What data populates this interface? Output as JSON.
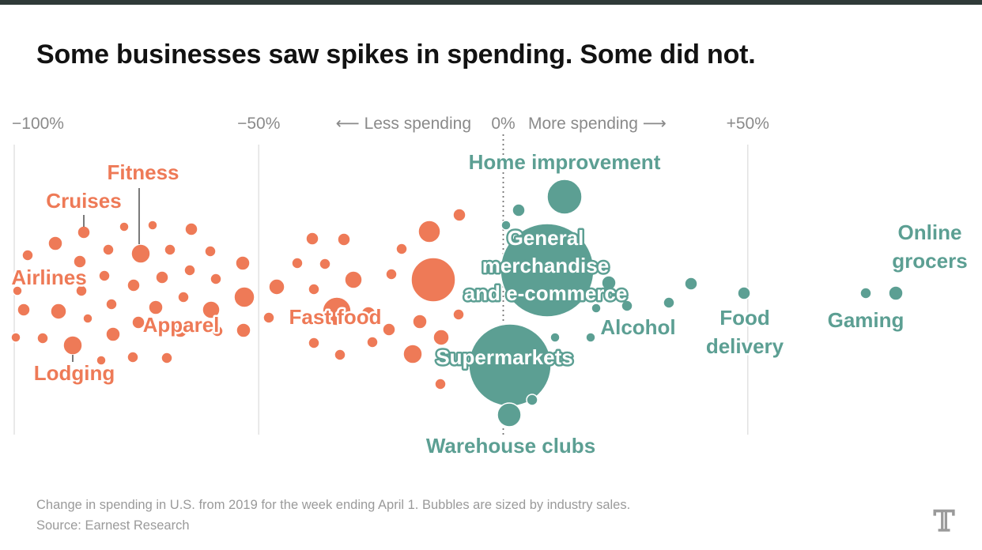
{
  "title": "Some businesses saw spikes in spending. Some did not.",
  "chart_data": {
    "type": "scatter",
    "encoding": "beeswarm bubble chart; x = change in spending vs 2019 (%), bubble area = industry sales",
    "axis": {
      "ticks": [
        {
          "value": -100,
          "label": "−100%"
        },
        {
          "value": -50,
          "label": "−50%"
        },
        {
          "value": 0,
          "label": "0%"
        },
        {
          "value": 50,
          "label": "+50%"
        }
      ],
      "less_label": "⟵ Less spending",
      "more_label": "More spending ⟶",
      "xlim": [
        -100,
        60
      ]
    },
    "colors": {
      "decrease": "#ee7a57",
      "increase": "#5c9f93"
    },
    "labeled_industries": [
      {
        "name": "Airlines",
        "change": -96
      },
      {
        "name": "Cruises",
        "change": -86
      },
      {
        "name": "Lodging",
        "change": -88
      },
      {
        "name": "Fitness",
        "change": -75
      },
      {
        "name": "Apparel",
        "change": -70
      },
      {
        "name": "Fast food",
        "change": -33
      },
      {
        "name": "Home improvement",
        "change": 13
      },
      {
        "name": "General merchandise and e-commerce",
        "change": 9
      },
      {
        "name": "Supermarkets",
        "change": 1
      },
      {
        "name": "Warehouse clubs",
        "change": 1
      },
      {
        "name": "Alcohol",
        "change": 19
      },
      {
        "name": "Food delivery",
        "change": 49
      },
      {
        "name": "Gaming",
        "change": 74
      },
      {
        "name": "Online grocers",
        "change": 80
      }
    ],
    "labels": [
      {
        "id": "airlines",
        "lines": [
          "Airlines"
        ],
        "group": "decrease"
      },
      {
        "id": "cruises",
        "lines": [
          "Cruises"
        ],
        "group": "decrease"
      },
      {
        "id": "fitness",
        "lines": [
          "Fitness"
        ],
        "group": "decrease"
      },
      {
        "id": "apparel",
        "lines": [
          "Apparel"
        ],
        "group": "decrease"
      },
      {
        "id": "lodging",
        "lines": [
          "Lodging"
        ],
        "group": "decrease"
      },
      {
        "id": "fastfood",
        "lines": [
          "Fast food"
        ],
        "group": "decrease"
      },
      {
        "id": "home",
        "lines": [
          "Home improvement"
        ],
        "group": "increase"
      },
      {
        "id": "general",
        "lines": [
          "General",
          "merchandise",
          "and e-commerce"
        ],
        "group": "increase"
      },
      {
        "id": "supermarkets",
        "lines": [
          "Supermarkets"
        ],
        "group": "increase"
      },
      {
        "id": "warehouse",
        "lines": [
          "Warehouse clubs"
        ],
        "group": "increase"
      },
      {
        "id": "alcohol",
        "lines": [
          "Alcohol"
        ],
        "group": "increase"
      },
      {
        "id": "fooddelivery",
        "lines": [
          "Food",
          "delivery"
        ],
        "group": "increase"
      },
      {
        "id": "gaming",
        "lines": [
          "Gaming"
        ],
        "group": "increase"
      },
      {
        "id": "online",
        "lines": [
          "Online",
          "grocers"
        ],
        "group": "increase"
      }
    ]
  },
  "footer": {
    "note": "Change in spending in U.S. from 2019 for the week ending April 1. Bubbles are sized by industry sales.",
    "source": "Source: Earnest Research"
  },
  "logo": "𝕋"
}
